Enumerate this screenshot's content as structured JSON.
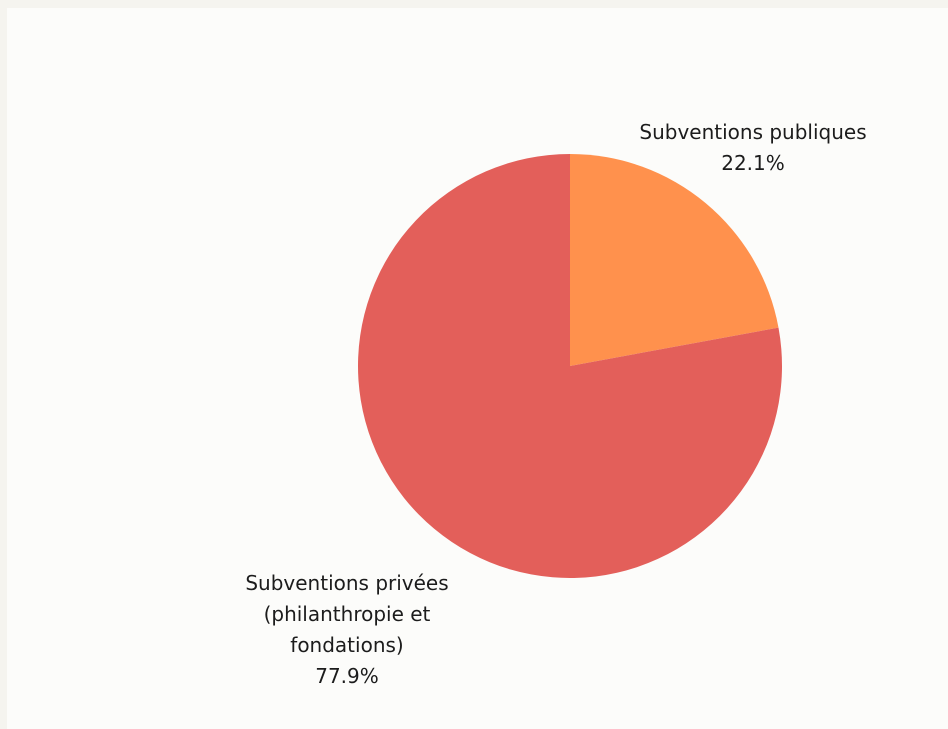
{
  "chart_data": {
    "type": "pie",
    "title": "",
    "slices": [
      {
        "label_lines": [
          "Subventions publiques"
        ],
        "value": 22.1,
        "value_label": "22.1%",
        "color": "#ff914d"
      },
      {
        "label_lines": [
          "Subventions privées",
          "(philanthropie et",
          "fondations)"
        ],
        "value": 77.9,
        "value_label": "77.9%",
        "color": "#e35f5a"
      }
    ],
    "start_angle": "12 o'clock",
    "direction": "clockwise"
  }
}
